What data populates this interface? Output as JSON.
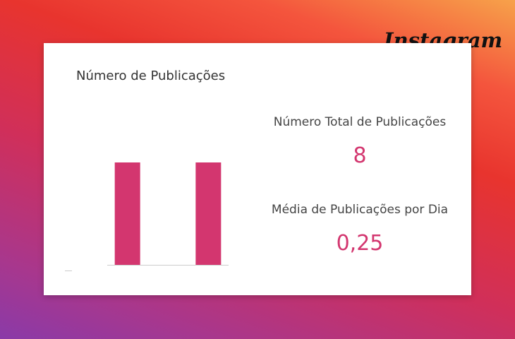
{
  "brand": {
    "text": "Instagram"
  },
  "card": {
    "title": "Número de Publicações",
    "stats": [
      {
        "label": "Número Total de Publicações",
        "value": "8"
      },
      {
        "label": "Média de Publicações por Dia",
        "value": "0,25"
      }
    ]
  },
  "chart_data": {
    "type": "bar",
    "categories": [
      "",
      "",
      ""
    ],
    "values": [
      1,
      0,
      1
    ],
    "title": "Número de Publicações",
    "xlabel": "",
    "ylabel": "",
    "ylim": [
      0,
      1.2
    ],
    "grid": false,
    "bar_color": "#d3366f"
  },
  "colors": {
    "accent": "#d3366f"
  }
}
